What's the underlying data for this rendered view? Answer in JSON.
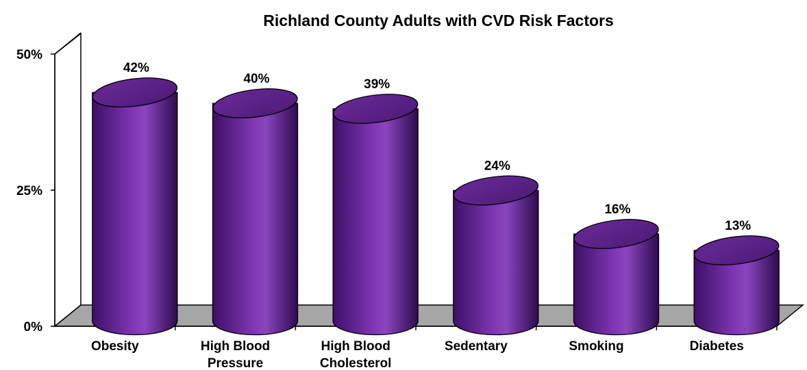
{
  "chart_data": {
    "type": "bar",
    "style": "3d-cylinder",
    "title": "Richland County Adults with CVD Risk Factors",
    "xlabel": "",
    "ylabel": "",
    "ylim": [
      0,
      50
    ],
    "yticks": [
      "0%",
      "25%",
      "50%"
    ],
    "categories": [
      [
        "Obesity"
      ],
      [
        "High Blood",
        "Pressure"
      ],
      [
        "High Blood",
        "Cholesterol"
      ],
      [
        "Sedentary"
      ],
      [
        "Smoking"
      ],
      [
        "Diabetes"
      ]
    ],
    "values": [
      42,
      40,
      39,
      24,
      16,
      13
    ],
    "data_labels": [
      "42%",
      "40%",
      "39%",
      "24%",
      "16%",
      "13%"
    ],
    "grid": false,
    "legend": "none",
    "colors": {
      "bar": "#7b35b0",
      "bar_dark": "#3d0f66",
      "bar_light": "#9a5cc8",
      "floor": "#a6a6a6",
      "axis": "#000000"
    }
  }
}
